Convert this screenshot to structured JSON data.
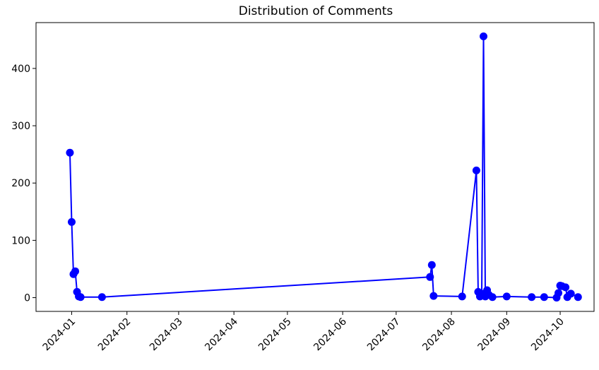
{
  "chart_data": {
    "type": "line",
    "title": "Distribution of Comments",
    "xlabel": "",
    "ylabel": "",
    "x_type": "date",
    "xlim": [
      "2023-12-12",
      "2024-10-20"
    ],
    "ylim": [
      -24,
      480
    ],
    "x_ticks": [
      "2024-01-01",
      "2024-02-01",
      "2024-03-01",
      "2024-04-01",
      "2024-05-01",
      "2024-06-01",
      "2024-07-01",
      "2024-08-01",
      "2024-09-01",
      "2024-10-01"
    ],
    "x_tick_labels": [
      "2024-01",
      "2024-02",
      "2024-03",
      "2024-04",
      "2024-05",
      "2024-06",
      "2024-07",
      "2024-08",
      "2024-09",
      "2024-10"
    ],
    "y_ticks": [
      0,
      100,
      200,
      300,
      400
    ],
    "y_tick_labels": [
      "0",
      "100",
      "200",
      "300",
      "400"
    ],
    "grid": false,
    "legend": "none",
    "series": [
      {
        "color": "#0000ff",
        "marker": "circle",
        "points": [
          {
            "x": "2023-12-31",
            "y": 253
          },
          {
            "x": "2024-01-01",
            "y": 132
          },
          {
            "x": "2024-01-02",
            "y": 41
          },
          {
            "x": "2024-01-03",
            "y": 46
          },
          {
            "x": "2024-01-04",
            "y": 10
          },
          {
            "x": "2024-01-05",
            "y": 2
          },
          {
            "x": "2024-01-06",
            "y": 1
          },
          {
            "x": "2024-01-18",
            "y": 1
          },
          {
            "x": "2024-07-20",
            "y": 36
          },
          {
            "x": "2024-07-21",
            "y": 57
          },
          {
            "x": "2024-07-22",
            "y": 3
          },
          {
            "x": "2024-08-07",
            "y": 2
          },
          {
            "x": "2024-08-15",
            "y": 222
          },
          {
            "x": "2024-08-16",
            "y": 10
          },
          {
            "x": "2024-08-17",
            "y": 2
          },
          {
            "x": "2024-08-18",
            "y": 7
          },
          {
            "x": "2024-08-19",
            "y": 456
          },
          {
            "x": "2024-08-20",
            "y": 2
          },
          {
            "x": "2024-08-21",
            "y": 13
          },
          {
            "x": "2024-08-22",
            "y": 5
          },
          {
            "x": "2024-08-24",
            "y": 1
          },
          {
            "x": "2024-09-01",
            "y": 2
          },
          {
            "x": "2024-09-15",
            "y": 1
          },
          {
            "x": "2024-09-22",
            "y": 1
          },
          {
            "x": "2024-09-29",
            "y": 0
          },
          {
            "x": "2024-09-30",
            "y": 8
          },
          {
            "x": "2024-10-01",
            "y": 21
          },
          {
            "x": "2024-10-02",
            "y": 20
          },
          {
            "x": "2024-10-04",
            "y": 18
          },
          {
            "x": "2024-10-05",
            "y": 1
          },
          {
            "x": "2024-10-07",
            "y": 7
          },
          {
            "x": "2024-10-11",
            "y": 1
          }
        ]
      }
    ]
  }
}
